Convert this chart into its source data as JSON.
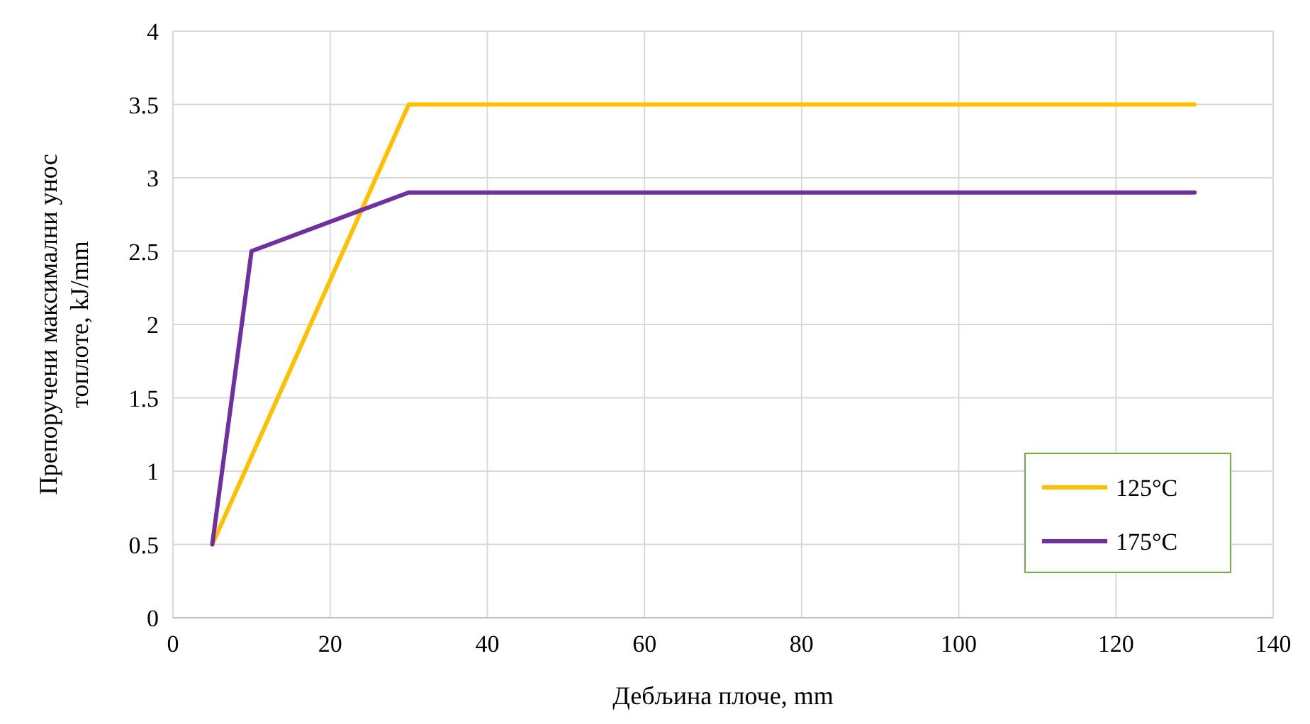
{
  "chart_data": {
    "type": "line",
    "xlabel": "Дебљина плоче, mm",
    "ylabel": "Препоручени максимални унос топлоте, kJ/mm",
    "series": [
      {
        "name": "125°C",
        "color": "#ffc000",
        "x": [
          5,
          30,
          130
        ],
        "values": [
          0.5,
          3.5,
          3.5
        ]
      },
      {
        "name": "175°C",
        "color": "#7030a0",
        "x": [
          5,
          10,
          30,
          130
        ],
        "values": [
          0.5,
          2.5,
          2.9,
          2.9
        ]
      }
    ],
    "xlim": [
      0,
      140
    ],
    "xticks": [
      0,
      20,
      40,
      60,
      80,
      100,
      120,
      140
    ],
    "ylim": [
      0,
      4
    ],
    "yticks": [
      0,
      0.5,
      1,
      1.5,
      2,
      2.5,
      3,
      3.5,
      4
    ],
    "grid": true,
    "legend": "bottom right",
    "marker": "none",
    "line_style": "solid"
  }
}
